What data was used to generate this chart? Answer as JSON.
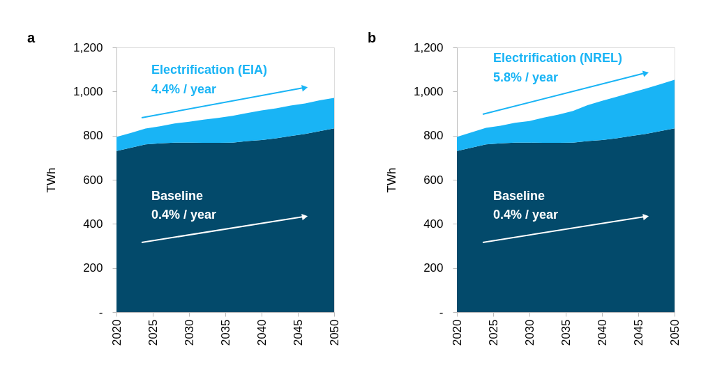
{
  "chart_data": [
    {
      "type": "area",
      "title": "a",
      "ylabel": "TWh",
      "stacked": true,
      "x": [
        2020,
        2022,
        2024,
        2026,
        2028,
        2030,
        2032,
        2034,
        2036,
        2038,
        2040,
        2042,
        2044,
        2046,
        2048,
        2050
      ],
      "series": [
        {
          "name": "Baseline",
          "color": "#034a6b",
          "values": [
            730,
            745,
            760,
            765,
            768,
            768,
            767,
            767,
            768,
            775,
            780,
            788,
            798,
            808,
            820,
            833
          ]
        },
        {
          "name": "Electrification (EIA)",
          "color": "#19b4f5",
          "values": [
            64,
            67,
            72,
            77,
            87,
            95,
            105,
            113,
            122,
            127,
            134,
            136,
            138,
            138,
            140,
            138
          ]
        }
      ],
      "annotations": [
        "0.4% / year",
        "4.4% / year"
      ],
      "xlim": [
        2020,
        2050
      ],
      "xticks": [
        2020,
        2025,
        2030,
        2035,
        2040,
        2045,
        2050
      ],
      "ylim": [
        0,
        1200
      ],
      "yticks": [
        {
          "value": 0,
          "label": "-"
        },
        200,
        400,
        600,
        800,
        {
          "value": 1000,
          "label": "1,000"
        },
        {
          "value": 1200,
          "label": "1,200"
        }
      ],
      "grid": false,
      "legend": false
    },
    {
      "type": "area",
      "title": "b",
      "ylabel": "TWh",
      "stacked": true,
      "x": [
        2020,
        2022,
        2024,
        2026,
        2028,
        2030,
        2032,
        2034,
        2036,
        2038,
        2040,
        2042,
        2044,
        2046,
        2048,
        2050
      ],
      "series": [
        {
          "name": "Baseline",
          "color": "#034a6b",
          "values": [
            730,
            745,
            760,
            765,
            768,
            768,
            767,
            767,
            768,
            775,
            780,
            788,
            798,
            808,
            820,
            833
          ]
        },
        {
          "name": "Electrification (NREL)",
          "color": "#19b4f5",
          "values": [
            64,
            70,
            75,
            80,
            90,
            98,
            115,
            128,
            144,
            163,
            178,
            188,
            197,
            205,
            213,
            220
          ]
        }
      ],
      "annotations": [
        "0.4% / year",
        "5.8% / year"
      ],
      "xlim": [
        2020,
        2050
      ],
      "xticks": [
        2020,
        2025,
        2030,
        2035,
        2040,
        2045,
        2050
      ],
      "ylim": [
        0,
        1200
      ],
      "yticks": [
        {
          "value": 0,
          "label": "-"
        },
        200,
        400,
        600,
        800,
        {
          "value": 1000,
          "label": "1,000"
        },
        {
          "value": 1200,
          "label": "1,200"
        }
      ],
      "grid": false,
      "legend": false
    }
  ]
}
